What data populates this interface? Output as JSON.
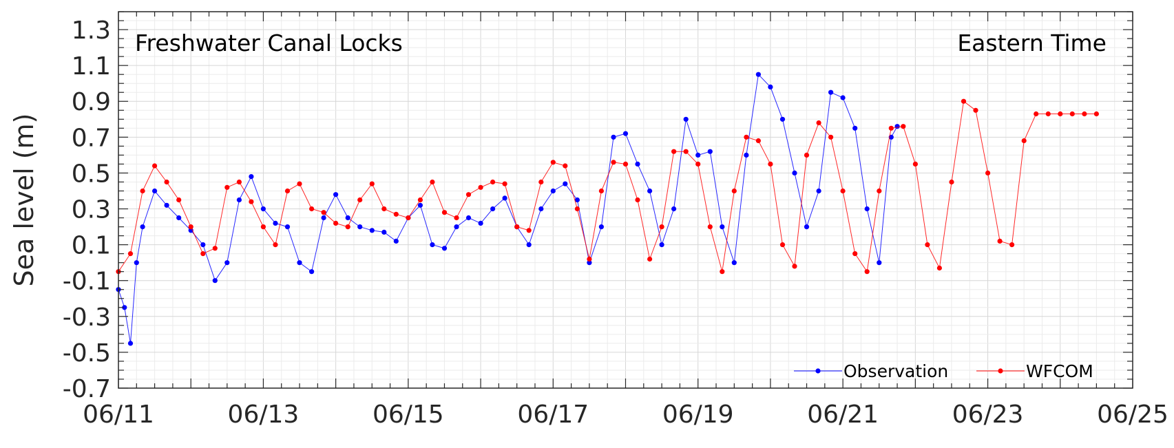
{
  "chart_data": {
    "type": "line",
    "title": "",
    "xlabel": "",
    "ylabel": "Sea level (m)",
    "xlim": [
      "06/11",
      "06/25"
    ],
    "ylim": [
      -0.7,
      1.4
    ],
    "xticks": [
      "06/11",
      "06/13",
      "06/15",
      "06/17",
      "06/19",
      "06/21",
      "06/23",
      "06/25"
    ],
    "yticks": [
      "-0.7",
      "-0.5",
      "-0.3",
      "-0.1",
      "0.1",
      "0.3",
      "0.5",
      "0.7",
      "0.9",
      "1.1",
      "1.3"
    ],
    "grid": true,
    "legend_position": "bottom-right",
    "annotations": {
      "left": "Freshwater Canal Locks",
      "right": "Eastern Time"
    },
    "series": [
      {
        "name": "Observation",
        "color": "#0000ff",
        "x": [
          "06/11 00:00",
          "06/11 02:00",
          "06/11 04:00",
          "06/11 06:00",
          "06/11 08:00",
          "06/11 12:00",
          "06/11 16:00",
          "06/11 20:00",
          "06/12 00:00",
          "06/12 04:00",
          "06/12 08:00",
          "06/12 12:00",
          "06/12 16:00",
          "06/12 20:00",
          "06/13 00:00",
          "06/13 04:00",
          "06/13 08:00",
          "06/13 12:00",
          "06/13 16:00",
          "06/13 20:00",
          "06/14 00:00",
          "06/14 04:00",
          "06/14 08:00",
          "06/14 12:00",
          "06/14 16:00",
          "06/14 20:00",
          "06/15 00:00",
          "06/15 04:00",
          "06/15 08:00",
          "06/15 12:00",
          "06/15 16:00",
          "06/15 20:00",
          "06/16 00:00",
          "06/16 04:00",
          "06/16 08:00",
          "06/16 12:00",
          "06/16 16:00",
          "06/16 20:00",
          "06/17 00:00",
          "06/17 04:00",
          "06/17 08:00",
          "06/17 12:00",
          "06/17 16:00",
          "06/17 20:00",
          "06/18 00:00",
          "06/18 04:00",
          "06/18 08:00",
          "06/18 12:00",
          "06/18 16:00",
          "06/18 20:00",
          "06/19 00:00",
          "06/19 04:00",
          "06/19 08:00",
          "06/19 12:00",
          "06/19 16:00",
          "06/19 20:00",
          "06/20 00:00",
          "06/20 04:00",
          "06/20 08:00",
          "06/20 12:00",
          "06/20 16:00",
          "06/20 20:00",
          "06/21 00:00",
          "06/21 04:00",
          "06/21 08:00",
          "06/21 12:00",
          "06/21 16:00",
          "06/21 18:00"
        ],
        "values": [
          -0.15,
          -0.25,
          -0.45,
          0.0,
          0.2,
          0.4,
          0.32,
          0.25,
          0.18,
          0.1,
          -0.1,
          0.0,
          0.35,
          0.48,
          0.3,
          0.22,
          0.2,
          0.0,
          -0.05,
          0.25,
          0.38,
          0.25,
          0.2,
          0.18,
          0.17,
          0.12,
          0.25,
          0.32,
          0.1,
          0.08,
          0.2,
          0.25,
          0.22,
          0.3,
          0.36,
          0.2,
          0.1,
          0.3,
          0.4,
          0.44,
          0.35,
          0.0,
          0.2,
          0.7,
          0.72,
          0.55,
          0.4,
          0.1,
          0.3,
          0.8,
          0.6,
          0.62,
          0.2,
          0.0,
          0.6,
          1.05,
          0.98,
          0.8,
          0.5,
          0.2,
          0.4,
          0.95,
          0.92,
          0.75,
          0.3,
          0.0,
          0.7,
          0.76
        ]
      },
      {
        "name": "WFCOM",
        "color": "#ff0000",
        "x": [
          "06/11 00:00",
          "06/11 04:00",
          "06/11 08:00",
          "06/11 12:00",
          "06/11 16:00",
          "06/11 20:00",
          "06/12 00:00",
          "06/12 04:00",
          "06/12 08:00",
          "06/12 12:00",
          "06/12 16:00",
          "06/12 20:00",
          "06/13 00:00",
          "06/13 04:00",
          "06/13 08:00",
          "06/13 12:00",
          "06/13 16:00",
          "06/13 20:00",
          "06/14 00:00",
          "06/14 04:00",
          "06/14 08:00",
          "06/14 12:00",
          "06/14 16:00",
          "06/14 20:00",
          "06/15 00:00",
          "06/15 04:00",
          "06/15 08:00",
          "06/15 12:00",
          "06/15 16:00",
          "06/15 20:00",
          "06/16 00:00",
          "06/16 04:00",
          "06/16 08:00",
          "06/16 12:00",
          "06/16 16:00",
          "06/16 20:00",
          "06/17 00:00",
          "06/17 04:00",
          "06/17 08:00",
          "06/17 12:00",
          "06/17 16:00",
          "06/17 20:00",
          "06/18 00:00",
          "06/18 04:00",
          "06/18 08:00",
          "06/18 12:00",
          "06/18 16:00",
          "06/18 20:00",
          "06/19 00:00",
          "06/19 04:00",
          "06/19 08:00",
          "06/19 12:00",
          "06/19 16:00",
          "06/19 20:00",
          "06/20 00:00",
          "06/20 04:00",
          "06/20 08:00",
          "06/20 12:00",
          "06/20 16:00",
          "06/20 20:00",
          "06/21 00:00",
          "06/21 04:00",
          "06/21 08:00",
          "06/21 12:00",
          "06/21 16:00",
          "06/21 20:00",
          "06/22 00:00",
          "06/22 04:00",
          "06/22 08:00",
          "06/22 12:00",
          "06/22 16:00",
          "06/22 20:00",
          "06/23 00:00",
          "06/23 04:00",
          "06/23 08:00",
          "06/23 12:00",
          "06/23 16:00",
          "06/23 20:00",
          "06/24 00:00",
          "06/24 04:00",
          "06/24 08:00",
          "06/24 12:00"
        ],
        "values": [
          -0.05,
          0.05,
          0.4,
          0.54,
          0.45,
          0.35,
          0.2,
          0.05,
          0.08,
          0.42,
          0.45,
          0.34,
          0.2,
          0.1,
          0.4,
          0.44,
          0.3,
          0.28,
          0.22,
          0.2,
          0.35,
          0.44,
          0.3,
          0.27,
          0.25,
          0.35,
          0.45,
          0.28,
          0.25,
          0.38,
          0.42,
          0.45,
          0.44,
          0.2,
          0.18,
          0.45,
          0.56,
          0.54,
          0.3,
          0.02,
          0.4,
          0.56,
          0.55,
          0.35,
          0.02,
          0.2,
          0.62,
          0.62,
          0.55,
          0.2,
          -0.05,
          0.4,
          0.7,
          0.68,
          0.55,
          0.1,
          -0.02,
          0.6,
          0.78,
          0.7,
          0.4,
          0.05,
          -0.05,
          0.4,
          0.75,
          0.76,
          0.55,
          0.1,
          -0.03,
          0.45,
          0.9,
          0.85,
          0.5,
          0.12,
          0.1,
          0.68,
          0.83,
          0.83,
          0.83,
          0.83,
          0.83,
          0.83
        ]
      }
    ]
  }
}
